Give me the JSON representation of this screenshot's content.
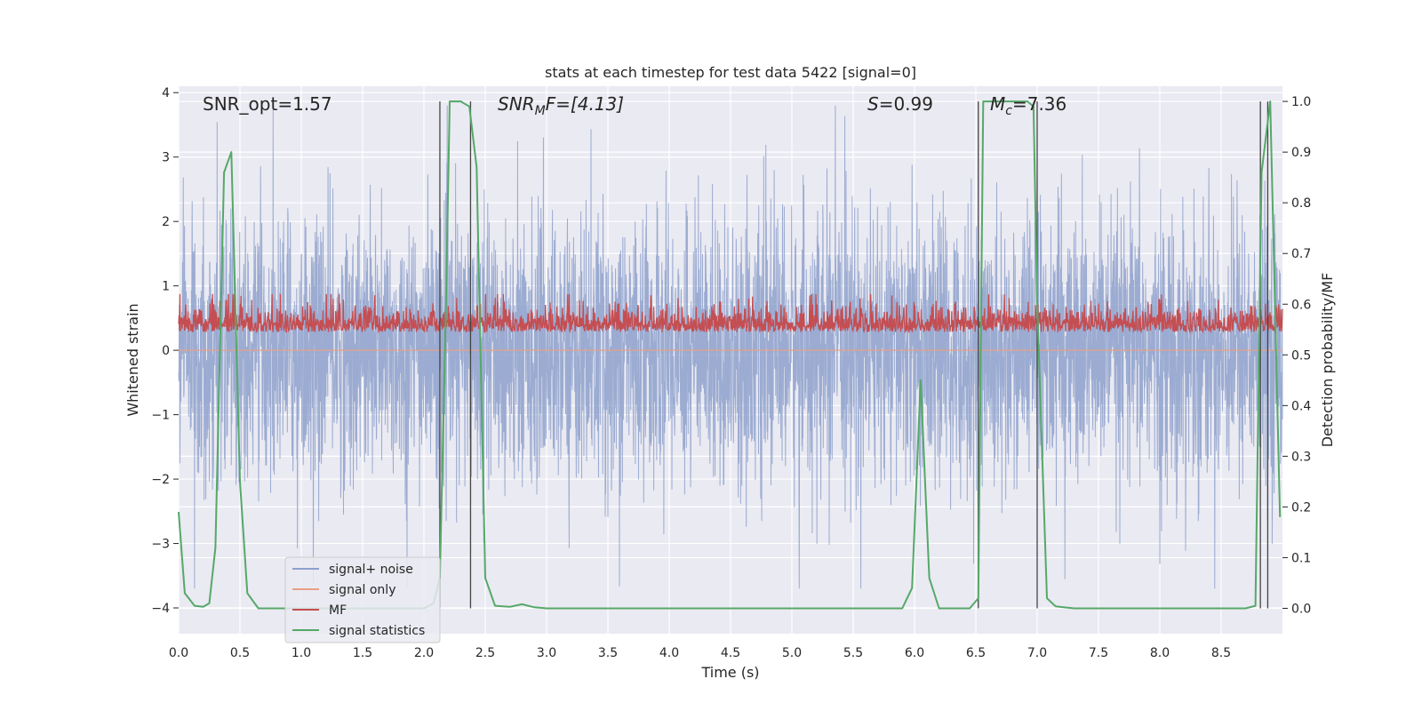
{
  "chart_data": {
    "type": "line",
    "title": "stats at each timestep for test data 5422 [signal=0]",
    "xlabel": "Time (s)",
    "ylabel": "Whitened strain",
    "ylabel_right": "Detection probability/MF",
    "xlim": [
      0,
      9.0
    ],
    "ylim": [
      -4.4,
      4.1
    ],
    "ylim_right": [
      -0.05,
      1.03
    ],
    "x_ticks": [
      0,
      0.5,
      1.0,
      1.5,
      2.0,
      2.5,
      3.0,
      3.5,
      4.0,
      4.5,
      5.0,
      5.5,
      6.0,
      6.5,
      7.0,
      7.5,
      8.0,
      8.5
    ],
    "x_tick_labels": [
      "0.0",
      "0.5",
      "1.0",
      "1.5",
      "2.0",
      "2.5",
      "3.0",
      "3.5",
      "4.0",
      "4.5",
      "5.0",
      "5.5",
      "6.0",
      "6.5",
      "7.0",
      "7.5",
      "8.0",
      "8.5"
    ],
    "y_ticks": [
      4,
      3,
      2,
      1,
      0,
      -1,
      -2,
      -3,
      -4
    ],
    "y_tick_labels": [
      "4",
      "3",
      "2",
      "1",
      "0",
      "−1",
      "−2",
      "−3",
      "−4"
    ],
    "y_right_ticks": [
      1.0,
      0.9,
      0.8,
      0.7,
      0.6,
      0.5,
      0.4,
      0.3,
      0.2,
      0.1,
      0.0
    ],
    "y_right_tick_labels": [
      "1.0",
      "0.9",
      "0.8",
      "0.7",
      "0.6",
      "0.5",
      "0.4",
      "0.3",
      "0.2",
      "0.1",
      "0.0"
    ],
    "annotations": {
      "snr_opt": "SNR_opt=1.57",
      "snr_mf_sym": "SNR",
      "snr_mf_sub": "M",
      "snr_mf_rest": "F=[4.13]",
      "s_sym": "S",
      "s_rest": "=0.99",
      "mc_sym": "M",
      "mc_sub": "c",
      "mc_rest": "=7.36"
    },
    "legend": {
      "placement": "lower-left",
      "entries": [
        "signal+ noise",
        "signal only",
        "MF",
        "signal statistics"
      ]
    },
    "series": [
      {
        "name": "signal+ noise",
        "axis": "left",
        "color": "#8da0cb",
        "description": "whitened strain noise, roughly within [-3.7, 3.8]",
        "amplitude_range": [
          -3.7,
          3.8
        ]
      },
      {
        "name": "signal only",
        "axis": "left",
        "color": "#e8a084",
        "values_constant": 0
      },
      {
        "name": "MF",
        "axis": "right",
        "color": "#c44e52",
        "range": [
          0.52,
          0.62
        ]
      },
      {
        "name": "signal statistics",
        "axis": "right",
        "color": "#55a868",
        "x": [
          0.0,
          0.05,
          0.13,
          0.2,
          0.25,
          0.3,
          0.37,
          0.43,
          0.5,
          0.56,
          0.65,
          2.0,
          2.08,
          2.13,
          2.18,
          2.21,
          2.3,
          2.37,
          2.43,
          2.5,
          2.58,
          2.7,
          2.8,
          2.9,
          3.0,
          5.9,
          5.98,
          6.05,
          6.12,
          6.2,
          6.27,
          6.45,
          6.52,
          6.56,
          6.92,
          6.97,
          7.0,
          7.08,
          7.15,
          7.3,
          8.7,
          8.78,
          8.83,
          8.9,
          8.98
        ],
        "values": [
          0.19,
          0.03,
          0.005,
          0.003,
          0.01,
          0.12,
          0.86,
          0.9,
          0.25,
          0.03,
          0.0,
          0.0,
          0.01,
          0.06,
          0.6,
          1.0,
          1.0,
          0.99,
          0.87,
          0.06,
          0.005,
          0.003,
          0.008,
          0.002,
          0.0,
          0.0,
          0.04,
          0.45,
          0.06,
          0.0,
          0.0,
          0.0,
          0.02,
          1.0,
          1.0,
          0.99,
          0.6,
          0.02,
          0.004,
          0.0,
          0.0,
          0.005,
          0.86,
          1.0,
          0.18
        ]
      },
      {
        "name": "detection markers",
        "axis": "right",
        "color": "#444444",
        "vlines_x": [
          2.13,
          2.38,
          6.52,
          7.0,
          8.82,
          8.88
        ],
        "range": [
          0.0,
          1.0
        ]
      }
    ]
  }
}
